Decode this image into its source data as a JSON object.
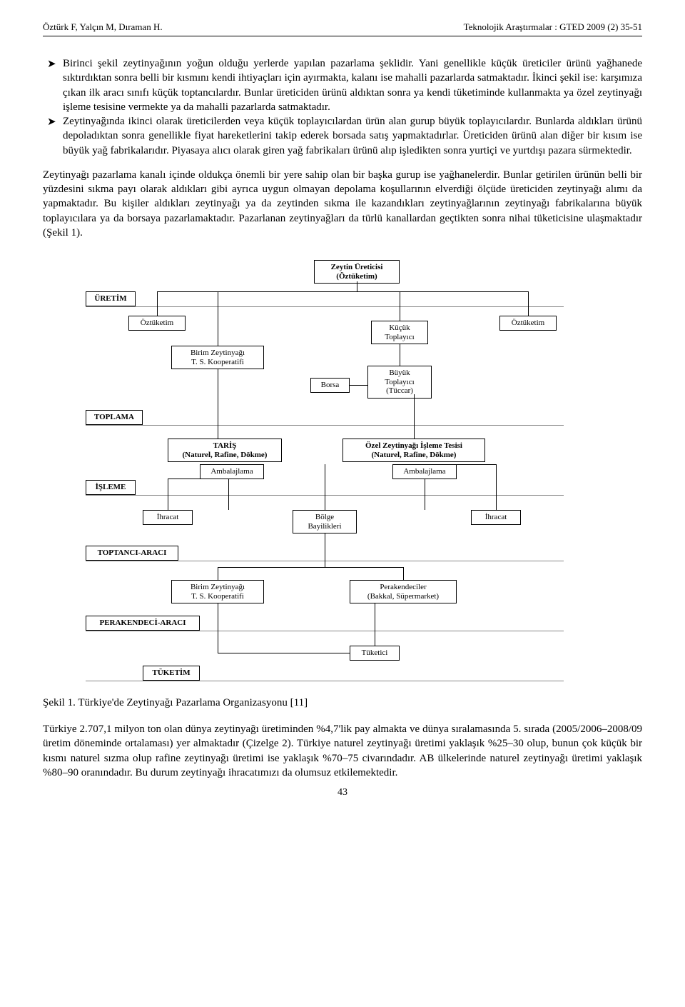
{
  "header": {
    "left": "Öztürk F, Yalçın M, Dıraman H.",
    "right": "Teknolojik Araştırmalar : GTED 2009 (2) 35-51"
  },
  "bullets": [
    "Birinci şekil zeytinyağının yoğun olduğu yerlerde yapılan pazarlama şeklidir. Yani genellikle küçük üreticiler ürünü yağhanede sıktırdıktan sonra belli bir kısmını kendi ihtiyaçları için ayırmakta, kalanı ise mahalli pazarlarda satmaktadır. İkinci şekil ise: karşımıza çıkan ilk aracı sınıfı küçük toptancılardır. Bunlar üreticiden ürünü aldıktan sonra ya kendi tüketiminde kullanmakta ya özel zeytinyağı işleme tesisine vermekte ya da mahalli pazarlarda satmaktadır.",
    "Zeytinyağında ikinci olarak üreticilerden veya küçük toplayıcılardan ürün alan gurup büyük toplayıcılardır. Bunlarda aldıkları ürünü depoladıktan sonra genellikle fiyat hareketlerini takip ederek borsada satış yapmaktadırlar. Üreticiden ürünü alan diğer bir kısım ise büyük yağ fabrikalarıdır. Piyasaya alıcı olarak giren yağ fabrikaları ürünü alıp işledikten sonra yurtiçi ve yurtdışı pazara sürmektedir."
  ],
  "para1": "Zeytinyağı pazarlama kanalı içinde oldukça önemli bir yere sahip olan bir başka gurup ise yağhanelerdir. Bunlar getirilen ürünün belli bir yüzdesini sıkma payı olarak aldıkları gibi ayrıca uygun olmayan depolama koşullarının elverdiği ölçüde üreticiden zeytinyağı alımı da yapmaktadır. Bu kişiler aldıkları zeytinyağı ya da zeytinden sıkma ile kazandıkları zeytinyağlarının zeytinyağı fabrikalarına büyük toplayıcılara ya da borsaya pazarlamaktadır. Pazarlanan zeytinyağları da türlü kanallardan geçtikten sonra nihai tüketicisine ulaşmaktadır (Şekil 1).",
  "figure": {
    "nodes": {
      "zeytin_ureticisi": "Zeytin Üreticisi\n(Öztüketim)",
      "uretim": "ÜRETİM",
      "oztuketim_l": "Öztüketim",
      "oztuketim_r": "Öztüketim",
      "kucuk_toplayici": "Küçük\nToplayıcı",
      "birim_koop_1": "Birim Zeytinyağı\nT. S. Kooperatifi",
      "buyuk_toplayici": "Büyük\nToplayıcı\n(Tüccar)",
      "borsa": "Borsa",
      "toplama": "TOPLAMA",
      "taris": "TARİŞ\n(Naturel, Rafine, Dökme)",
      "ozel_tesis": "Özel Zeytinyağı İşleme Tesisi\n(Naturel, Rafine, Dökme)",
      "ambalaj_l": "Ambalajlama",
      "ambalaj_r": "Ambalajlama",
      "isleme": "İŞLEME",
      "ihracat_l": "İhracat",
      "ihracat_r": "İhracat",
      "bolge_bay": "Bölge\nBayilikleri",
      "toptanci": "TOPTANCI-ARACI",
      "birim_koop_2": "Birim Zeytinyağı\nT. S. Kooperatifi",
      "perakendeciler": "Perakendeciler\n(Bakkal, Süpermarket)",
      "perakendeci": "PERAKENDECİ-ARACI",
      "tuketici": "Tüketici",
      "tuketim": "TÜKETİM"
    }
  },
  "caption": "Şekil 1. Türkiye'de Zeytinyağı Pazarlama Organizasyonu [11]",
  "para2": "Türkiye 2.707,1 milyon ton olan dünya zeytinyağı üretiminden %4,7'lik pay almakta ve dünya sıralamasında 5. sırada (2005/2006–2008/09 üretim döneminde ortalaması) yer almaktadır (Çizelge 2). Türkiye naturel zeytinyağı üretimi yaklaşık %25–30 olup, bunun çok küçük bir kısmı naturel sızma olup rafine zeytinyağı üretimi ise yaklaşık %70–75 civarındadır. AB ülkelerinde naturel zeytinyağı üretimi yaklaşık %80–90 oranındadır. Bu durum zeytinyağı ihracatımızı da olumsuz etkilemektedir.",
  "page_number": "43"
}
